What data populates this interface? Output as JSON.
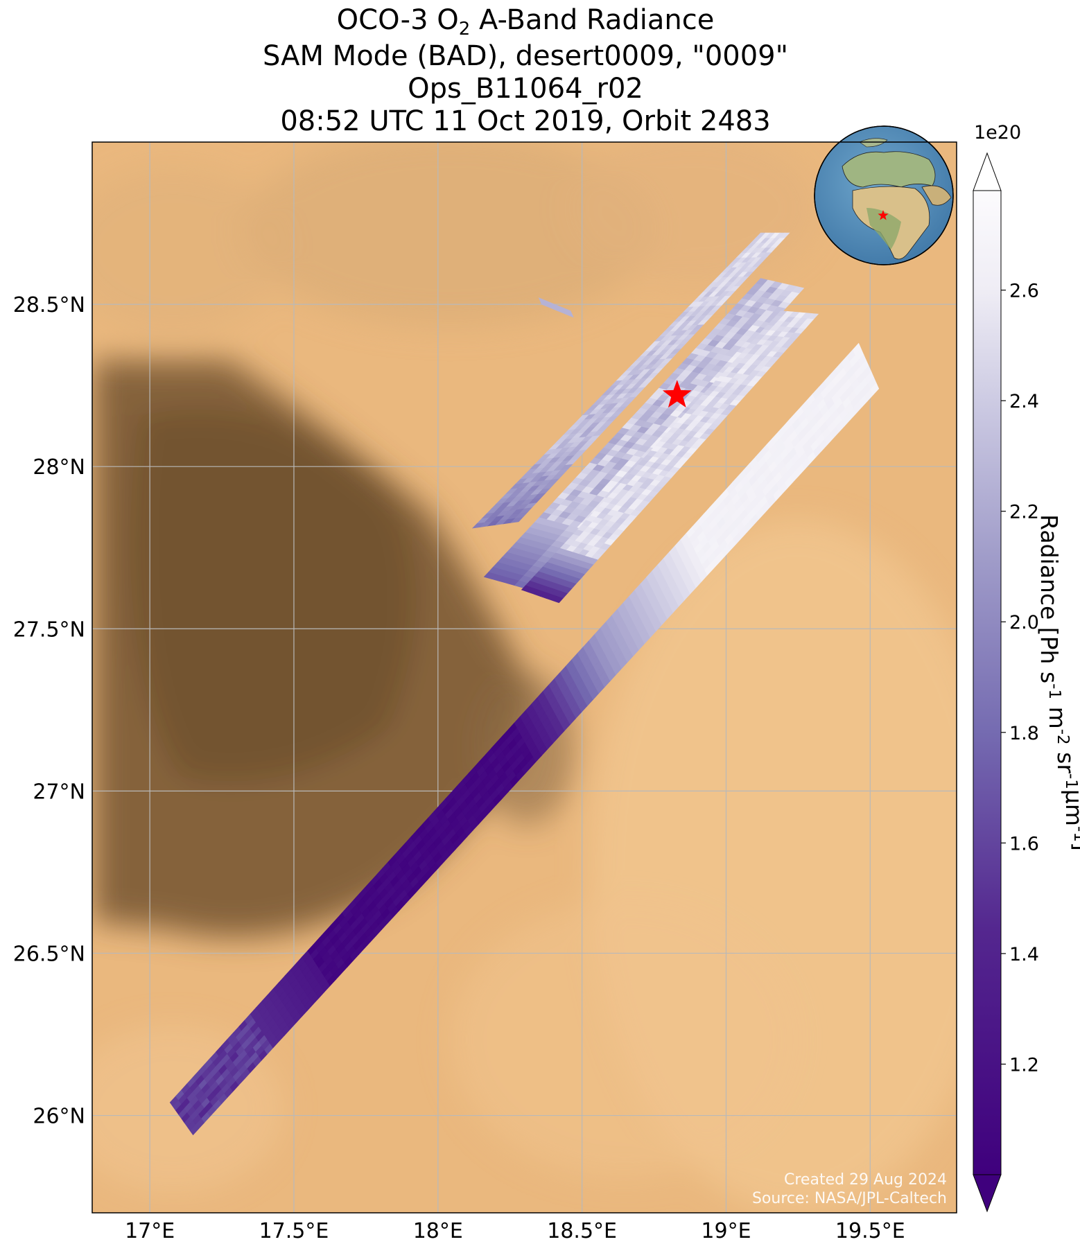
{
  "title": {
    "line1_prefix": "OCO-3 O",
    "line1_sub": "2",
    "line1_suffix": " A-Band Radiance",
    "line2": "SAM Mode (BAD), desert0009, \"0009\"",
    "line3": "Ops_B11064_r02",
    "line4": "08:52 UTC 11 Oct 2019, Orbit 2483"
  },
  "map": {
    "lon_range": [
      16.8,
      19.8
    ],
    "lat_range": [
      25.7,
      29.0
    ],
    "lon_ticks": [
      {
        "value": 17.0,
        "label": "17°E"
      },
      {
        "value": 17.5,
        "label": "17.5°E"
      },
      {
        "value": 18.0,
        "label": "18°E"
      },
      {
        "value": 18.5,
        "label": "18.5°E"
      },
      {
        "value": 19.0,
        "label": "19°E"
      },
      {
        "value": 19.5,
        "label": "19.5°E"
      }
    ],
    "lat_ticks": [
      {
        "value": 26.0,
        "label": "26°N"
      },
      {
        "value": 26.5,
        "label": "26.5°N"
      },
      {
        "value": 27.0,
        "label": "27°N"
      },
      {
        "value": 27.5,
        "label": "27.5°N"
      },
      {
        "value": 28.0,
        "label": "28°N"
      },
      {
        "value": 28.5,
        "label": "28.5°N"
      }
    ],
    "grid": true,
    "target_marker": {
      "lon": 18.83,
      "lat": 28.22,
      "color": "#ff0000",
      "shape": "star-icon"
    },
    "inset": "globe-locator",
    "credit_line1": "Created 29 Aug 2024",
    "credit_line2": "Source: NASA/JPL-Caltech"
  },
  "colorbar": {
    "label": "Radiance [Ph s⁻¹ m⁻² sr⁻¹μm⁻¹]",
    "multiplier": "1e20",
    "range": [
      1.0,
      2.78
    ],
    "colormap": "Purples_r",
    "ticks": [
      "1.2",
      "1.4",
      "1.6",
      "1.8",
      "2.0",
      "2.2",
      "2.4",
      "2.6"
    ],
    "extend": "both"
  }
}
